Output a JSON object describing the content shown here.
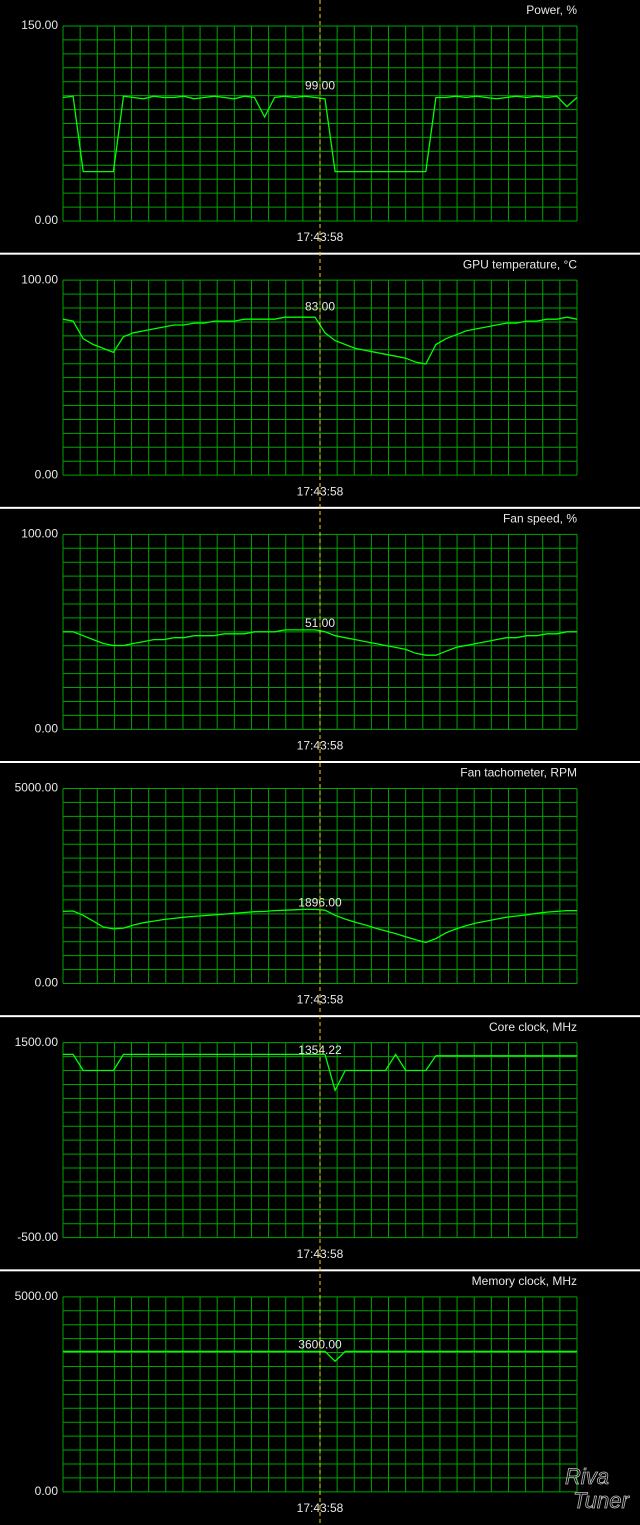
{
  "chart_data": [
    {
      "type": "line",
      "title": "Power, %",
      "color": "#00ff00",
      "grid": true,
      "ylim": [
        0,
        150
      ],
      "yticks": [
        {
          "value": 0,
          "label": "0.00"
        },
        {
          "value": 150,
          "label": "150.00"
        }
      ],
      "cursor": {
        "value": 99,
        "label": "99.00"
      },
      "cursor_time": "17:43:58",
      "values": [
        95,
        96,
        38,
        38,
        38,
        38,
        96,
        95,
        94,
        96,
        95,
        95,
        96,
        94,
        95,
        96,
        95,
        94,
        96,
        95,
        80,
        95,
        96,
        95,
        96,
        95,
        94,
        38,
        38,
        38,
        38,
        38,
        38,
        38,
        38,
        38,
        38,
        95,
        95,
        96,
        95,
        96,
        95,
        94,
        95,
        96,
        95,
        96,
        95,
        96,
        88,
        95
      ]
    },
    {
      "type": "line",
      "title": "GPU temperature, °C",
      "color": "#00ff00",
      "grid": true,
      "ylim": [
        0,
        100
      ],
      "yticks": [
        {
          "value": 0,
          "label": "0.00"
        },
        {
          "value": 100,
          "label": "100.00"
        }
      ],
      "cursor": {
        "value": 83,
        "label": "83.00"
      },
      "cursor_time": "17:43:58",
      "values": [
        80,
        79,
        70,
        67,
        65,
        63,
        71,
        73,
        74,
        75,
        76,
        77,
        77,
        78,
        78,
        79,
        79,
        79,
        80,
        80,
        80,
        80,
        81,
        81,
        81,
        81,
        73,
        69,
        67,
        65,
        64,
        63,
        62,
        61,
        60,
        58,
        57,
        67,
        70,
        72,
        74,
        75,
        76,
        77,
        78,
        78,
        79,
        79,
        80,
        80,
        81,
        80
      ]
    },
    {
      "type": "line",
      "title": "Fan speed, %",
      "color": "#00ff00",
      "grid": true,
      "ylim": [
        0,
        100
      ],
      "yticks": [
        {
          "value": 0,
          "label": "0.00"
        },
        {
          "value": 100,
          "label": "100.00"
        }
      ],
      "cursor": {
        "value": 51,
        "label": "51.00"
      },
      "cursor_time": "17:43:58",
      "values": [
        50,
        50,
        48,
        46,
        44,
        43,
        43,
        44,
        45,
        46,
        46,
        47,
        47,
        48,
        48,
        48,
        49,
        49,
        49,
        50,
        50,
        50,
        51,
        51,
        51,
        51,
        50,
        48,
        47,
        46,
        45,
        44,
        43,
        42,
        41,
        39,
        38,
        38,
        40,
        42,
        43,
        44,
        45,
        46,
        47,
        47,
        48,
        48,
        49,
        49,
        50,
        50
      ]
    },
    {
      "type": "line",
      "title": "Fan tachometer, RPM",
      "color": "#00ff00",
      "grid": true,
      "ylim": [
        0,
        5000
      ],
      "yticks": [
        {
          "value": 0,
          "label": "0.00"
        },
        {
          "value": 5000,
          "label": "5000.00"
        }
      ],
      "cursor": {
        "value": 1896,
        "label": "1896.00"
      },
      "cursor_time": "17:43:58",
      "values": [
        1850,
        1860,
        1750,
        1600,
        1450,
        1400,
        1420,
        1500,
        1560,
        1600,
        1640,
        1670,
        1700,
        1720,
        1740,
        1760,
        1780,
        1800,
        1820,
        1840,
        1850,
        1870,
        1880,
        1890,
        1900,
        1900,
        1880,
        1750,
        1650,
        1570,
        1500,
        1420,
        1350,
        1280,
        1200,
        1120,
        1050,
        1150,
        1300,
        1400,
        1480,
        1550,
        1600,
        1650,
        1700,
        1730,
        1760,
        1800,
        1830,
        1850,
        1870,
        1870
      ]
    },
    {
      "type": "line",
      "title": "Core clock, MHz",
      "color": "#00ff00",
      "grid": true,
      "ylim": [
        -500,
        1500
      ],
      "yticks": [
        {
          "value": -500,
          "label": "-500.00"
        },
        {
          "value": 1500,
          "label": "1500.00"
        }
      ],
      "cursor": {
        "value": 1354.22,
        "label": "1354.22"
      },
      "cursor_time": "17:43:58",
      "values": [
        1380,
        1380,
        1215,
        1215,
        1215,
        1215,
        1380,
        1380,
        1380,
        1380,
        1380,
        1380,
        1380,
        1380,
        1380,
        1380,
        1380,
        1380,
        1380,
        1380,
        1380,
        1380,
        1380,
        1380,
        1380,
        1380,
        1380,
        1010,
        1215,
        1215,
        1215,
        1215,
        1215,
        1380,
        1215,
        1215,
        1215,
        1365,
        1365,
        1365,
        1365,
        1365,
        1365,
        1365,
        1365,
        1365,
        1365,
        1365,
        1365,
        1365,
        1365,
        1365
      ]
    },
    {
      "type": "line",
      "title": "Memory clock, MHz",
      "color": "#00ff00",
      "grid": true,
      "ylim": [
        0,
        5000
      ],
      "yticks": [
        {
          "value": 0,
          "label": "0.00"
        },
        {
          "value": 5000,
          "label": "5000.00"
        }
      ],
      "cursor": {
        "value": 3600,
        "label": "3600.00"
      },
      "cursor_time": "17:43:58",
      "values": [
        3600,
        3600,
        3600,
        3600,
        3600,
        3600,
        3600,
        3600,
        3600,
        3600,
        3600,
        3600,
        3600,
        3600,
        3600,
        3600,
        3600,
        3600,
        3600,
        3600,
        3600,
        3600,
        3600,
        3600,
        3600,
        3600,
        3600,
        3350,
        3600,
        3600,
        3600,
        3600,
        3600,
        3600,
        3600,
        3600,
        3600,
        3600,
        3600,
        3600,
        3600,
        3600,
        3600,
        3600,
        3600,
        3600,
        3600,
        3600,
        3600,
        3600,
        3600,
        3600
      ]
    }
  ],
  "watermark": [
    "Riva",
    "Tuner"
  ]
}
